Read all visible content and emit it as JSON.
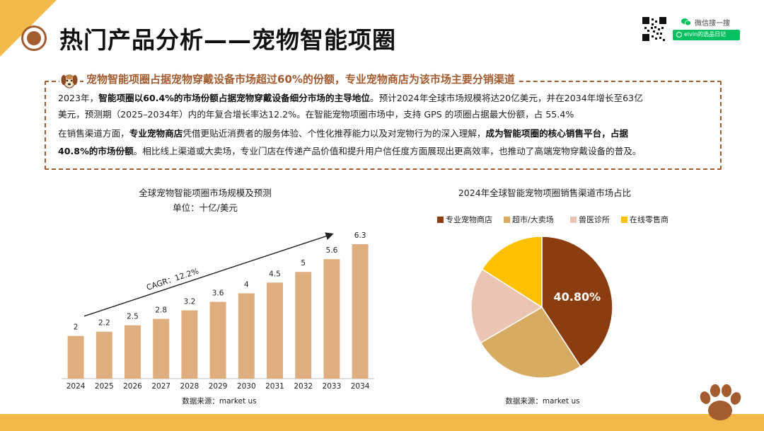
{
  "page": {
    "title": "热门产品分析——宠物智能项圈",
    "wechat": {
      "label": "微信搜一搜",
      "search_text": "elvin的选品日记"
    }
  },
  "summary": {
    "headline": "宠物智能项圈占据宠物穿戴设备市场超过60%的份额，专业宠物商店为该市场主要分销渠道",
    "p1_pre": "2023年，",
    "p1_bold": "智能项圈以60.4%的市场份额占据宠物穿戴设备细分市场的主导地位",
    "p1_post": "。预计2024年全球市场规模将达20亿美元，并在2034年增长至63亿",
    "p2": "美元，预测期（2025–2034年）内的年复合增长率达12.2%。在智能宠物项圈市场中，支持 GPS 的项圈占据最大份额，占 55.4%",
    "p3_pre": "在销售渠道方面，",
    "p3_bold1": "专业宠物商店",
    "p3_mid": "凭借更贴近消费者的服务体验、个性化推荐能力以及对宠物行为的深入理解，",
    "p3_bold2": "成为智能项圈的核心销售平台，占据",
    "p4_bold": "40.8%的市场份额",
    "p4_post": "。相比线上渠道或大卖场，专业门店在传递产品价值和提升用户信任度方面展现出更高效率，也推动了高端宠物穿戴设备的普及。"
  },
  "chart_data": [
    {
      "type": "bar",
      "title": "全球宠物智能项圈市场规模及预测",
      "subtitle": "单位：十亿/美元",
      "categories": [
        "2024",
        "2025",
        "2026",
        "2027",
        "2028",
        "2029",
        "2030",
        "2031",
        "2032",
        "2033",
        "2034"
      ],
      "values": [
        2,
        2.2,
        2.5,
        2.8,
        3.2,
        3.6,
        4,
        4.5,
        5,
        5.6,
        6.3
      ],
      "ylim": [
        0,
        6.5
      ],
      "annotation": "CAGR：12.2%",
      "source": "数据来源：market us",
      "grid": false,
      "colors": {
        "bar": "#dfae7e",
        "axis": "#bbbbbb"
      }
    },
    {
      "type": "pie",
      "title": "2024年全球智能宠物项圈销售渠道市场占比",
      "legend_position": "top",
      "slices": [
        {
          "name": "专业宠物商店",
          "value": 40.8,
          "color": "#8b3d0f"
        },
        {
          "name": "超市/大卖场",
          "value": 25.8,
          "color": "#d7ab62"
        },
        {
          "name": "兽医诊所",
          "value": 17.4,
          "color": "#ebc4b4"
        },
        {
          "name": "在线零售商",
          "value": 16.0,
          "color": "#ffc000"
        }
      ],
      "data_label": "40.80%",
      "source": "数据来源：market us"
    }
  ]
}
